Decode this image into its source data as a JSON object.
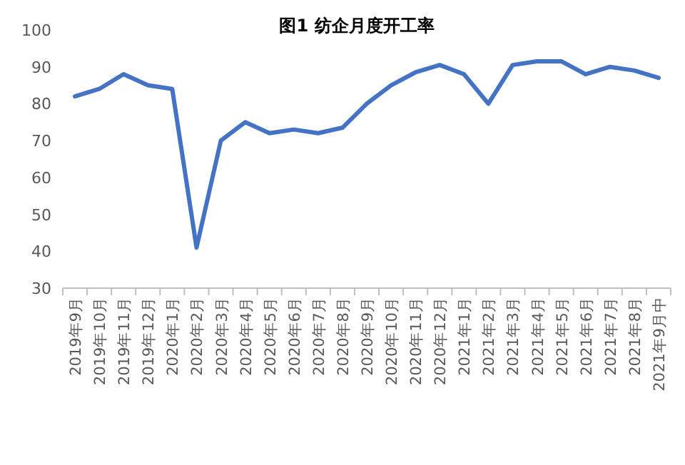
{
  "chart_data": {
    "type": "line",
    "title": "图1  纺企月度开工率",
    "categories": [
      "2019年9月",
      "2019年10月",
      "2019年11月",
      "2019年12月",
      "2020年1月",
      "2020年2月",
      "2020年3月",
      "2020年4月",
      "2020年5月",
      "2020年6月",
      "2020年7月",
      "2020年8月",
      "2020年9月",
      "2020年10月",
      "2020年11月",
      "2020年12月",
      "2021年1月",
      "2021年2月",
      "2021年3月",
      "2021年4月",
      "2021年5月",
      "2021年6月",
      "2021年7月",
      "2021年8月",
      "2021年9月中"
    ],
    "series": [
      {
        "color": "#4472c4",
        "values": [
          82,
          84,
          88,
          85,
          84,
          41,
          70,
          75,
          72,
          73,
          72,
          73.5,
          80,
          85,
          88.5,
          90.5,
          88,
          80,
          90.5,
          91.5,
          91.5,
          88,
          90,
          89,
          87
        ]
      }
    ],
    "ylim": [
      30,
      100
    ],
    "yticks": [
      30,
      40,
      50,
      60,
      70,
      80,
      90,
      100
    ],
    "grid": false,
    "marker": "none",
    "line_style": "solid"
  }
}
